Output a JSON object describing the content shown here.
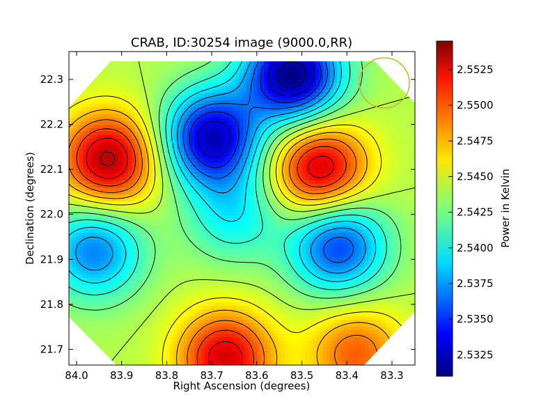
{
  "chart_data": {
    "type": "heatmap",
    "title": "CRAB, ID:30254 image (9000.0,RR)",
    "xlabel": "Right Ascension (degrees)",
    "ylabel": "Declination (degrees)",
    "colorbar_label": "Power in Kelvin",
    "x_ticks": [
      "84.0",
      "83.9",
      "83.8",
      "83.7",
      "83.6",
      "83.5",
      "83.4",
      "83.3"
    ],
    "x_tick_values": [
      84.0,
      83.9,
      83.8,
      83.7,
      83.6,
      83.5,
      83.4,
      83.3
    ],
    "y_ticks": [
      "22.3",
      "22.2",
      "22.1",
      "22.0",
      "21.9",
      "21.8",
      "21.7"
    ],
    "y_tick_values": [
      22.3,
      22.2,
      22.1,
      22.0,
      21.9,
      21.8,
      21.7
    ],
    "colorbar_ticks": [
      "2.5525",
      "2.5500",
      "2.5475",
      "2.5450",
      "2.5425",
      "2.5400",
      "2.5375",
      "2.5350",
      "2.5325"
    ],
    "colorbar_tick_values": [
      2.5525,
      2.55,
      2.5475,
      2.545,
      2.5425,
      2.54,
      2.5375,
      2.535,
      2.5325
    ],
    "xlim": [
      84.017,
      83.249
    ],
    "ylim": [
      21.665,
      22.362
    ],
    "zlim": [
      2.531,
      2.5545
    ],
    "colormap": "jet",
    "beam_color": "#c8b42a",
    "features": [
      {
        "kind": "max",
        "ra": 83.93,
        "dec": 22.12,
        "value": 2.5535
      },
      {
        "kind": "max",
        "ra": 83.46,
        "dec": 22.1,
        "value": 2.553
      },
      {
        "kind": "max",
        "ra": 83.67,
        "dec": 21.68,
        "value": 2.5525
      },
      {
        "kind": "max",
        "ra": 83.38,
        "dec": 21.69,
        "value": 2.5495
      },
      {
        "kind": "min",
        "ra": 83.52,
        "dec": 22.31,
        "value": 2.531
      },
      {
        "kind": "min",
        "ra": 83.7,
        "dec": 22.17,
        "value": 2.5325
      },
      {
        "kind": "min",
        "ra": 83.42,
        "dec": 21.93,
        "value": 2.5352
      },
      {
        "kind": "min",
        "ra": 83.96,
        "dec": 21.92,
        "value": 2.5368
      },
      {
        "kind": "min",
        "ra": 83.65,
        "dec": 22.0,
        "value": 2.5398
      }
    ]
  }
}
